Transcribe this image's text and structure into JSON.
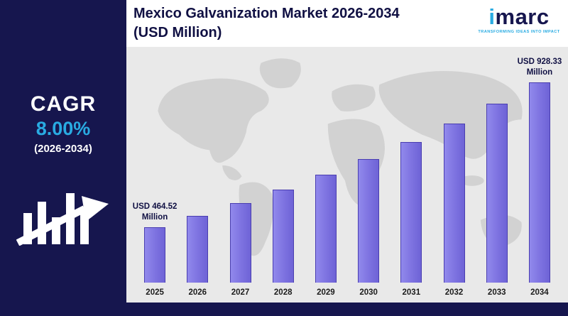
{
  "title": {
    "line1": "Mexico Galvanization Market 2026-2034",
    "line2": "(USD Million)"
  },
  "logo": {
    "brand_first_letter": "i",
    "brand_rest": "marc",
    "tagline": "TRANSFORMING IDEAS INTO IMPACT"
  },
  "sidebar": {
    "cagr_label": "CAGR",
    "cagr_value": "8.00%",
    "cagr_period": "(2026-2034)"
  },
  "chart_data": {
    "type": "bar",
    "title": "Mexico Galvanization Market 2026-2034 (USD Million)",
    "unit": "USD Million",
    "categories": [
      "2025",
      "2026",
      "2027",
      "2028",
      "2029",
      "2030",
      "2031",
      "2032",
      "2033",
      "2034"
    ],
    "values": [
      464.52,
      501.7,
      541.8,
      585.2,
      632.0,
      682.5,
      737.1,
      796.1,
      859.8,
      928.33
    ],
    "annotations": [
      {
        "index": 0,
        "lines": [
          "USD 464.52",
          "Million"
        ]
      },
      {
        "index": 9,
        "lines": [
          "USD 928.33",
          "Million"
        ]
      }
    ],
    "xlabel": "",
    "ylabel": "",
    "legend": "none",
    "grid": false,
    "bar_color": "#7d72e0",
    "bar_border": "#4a3eb0"
  },
  "colors": {
    "navy": "#16164e",
    "cyan": "#29abe2",
    "background_gray": "#e9e9e9",
    "map_gray": "#d2d2d2"
  }
}
